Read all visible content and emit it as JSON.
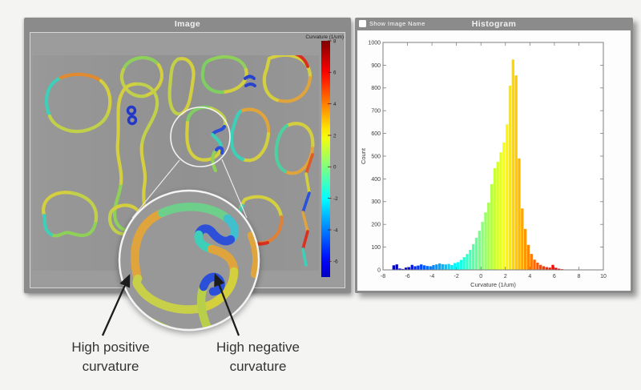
{
  "page": {
    "background": "#f4f4f3"
  },
  "image_panel": {
    "title": "Image",
    "colorbar": {
      "title": "Curvature (1/um)",
      "ticks": [
        8,
        6,
        4,
        2,
        0,
        -2,
        -4,
        -6
      ],
      "domain_bottom": -7,
      "domain_top": 8,
      "colormap": "jet"
    }
  },
  "histogram_panel": {
    "title": "Histogram",
    "checkbox_label": "Show Image Name",
    "checkbox_checked": false
  },
  "annotations": {
    "positive": {
      "line1": "High positive",
      "line2": "curvature"
    },
    "negative": {
      "line1": "High negative",
      "line2": "curvature"
    }
  },
  "colors": {
    "panel_gray": "#8b8b8b",
    "panel_body_gray": "#9c9c9c",
    "image_background": "#959595",
    "plot_background": "#fdfdfd",
    "annotation_text": "#333333",
    "arrow_black": "#1c1c1c"
  },
  "chart_data": {
    "type": "bar",
    "title": "",
    "xlabel": "Curvature (1/um)",
    "ylabel": "Count",
    "xlim": [
      -8,
      10
    ],
    "ylim": [
      0,
      1000
    ],
    "x_ticks": [
      -8,
      -6,
      -4,
      -2,
      0,
      2,
      4,
      6,
      8,
      10
    ],
    "y_ticks": [
      0,
      100,
      200,
      300,
      400,
      500,
      600,
      700,
      800,
      900,
      1000
    ],
    "grid": false,
    "legend": "none",
    "bar_color_rule": "jet colormap by bin center over [-8, 8]",
    "bin_width": 0.25,
    "bin_centers": [
      -7.125,
      -6.875,
      -6.625,
      -6.375,
      -6.125,
      -5.875,
      -5.625,
      -5.375,
      -5.125,
      -4.875,
      -4.625,
      -4.375,
      -4.125,
      -3.875,
      -3.625,
      -3.375,
      -3.125,
      -2.875,
      -2.625,
      -2.375,
      -2.125,
      -1.875,
      -1.625,
      -1.375,
      -1.125,
      -0.875,
      -0.625,
      -0.375,
      -0.125,
      0.125,
      0.375,
      0.625,
      0.875,
      1.125,
      1.375,
      1.625,
      1.875,
      2.125,
      2.375,
      2.625,
      2.875,
      3.125,
      3.375,
      3.625,
      3.875,
      4.125,
      4.375,
      4.625,
      4.875,
      5.125,
      5.375,
      5.625,
      5.875,
      6.125,
      6.375,
      6.625
    ],
    "counts": [
      20,
      24,
      6,
      4,
      10,
      12,
      22,
      16,
      19,
      24,
      20,
      17,
      16,
      21,
      24,
      28,
      25,
      24,
      26,
      21,
      30,
      34,
      44,
      56,
      70,
      88,
      113,
      141,
      172,
      211,
      253,
      296,
      377,
      447,
      475,
      517,
      560,
      640,
      810,
      925,
      855,
      490,
      270,
      180,
      110,
      70,
      45,
      32,
      22,
      16,
      12,
      10,
      22,
      9,
      5,
      3
    ]
  }
}
